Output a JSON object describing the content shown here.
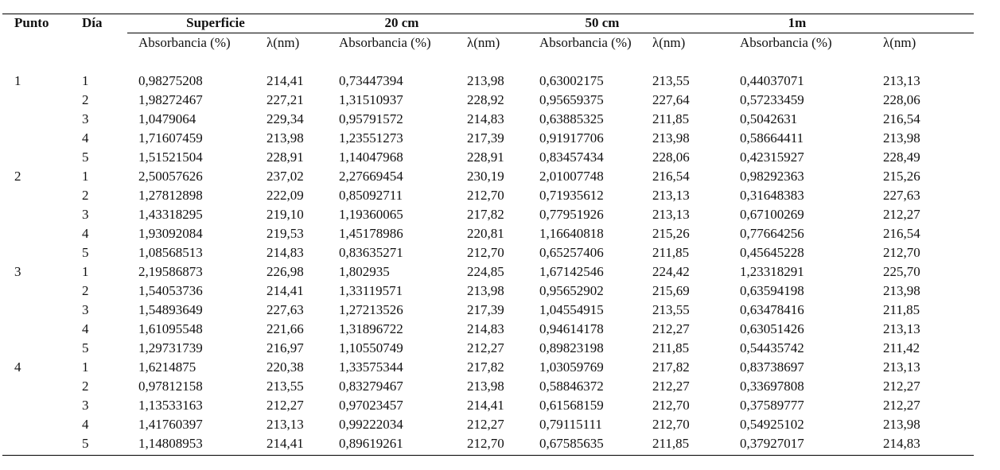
{
  "header": {
    "punto": "Punto",
    "dia": "Día",
    "groups": [
      "Superficie",
      "20 cm",
      "50 cm",
      "1m"
    ],
    "subheaders": [
      "Absorbancia (%)",
      "λ(nm)",
      "Absorbancia (%)",
      "λ(nm)",
      "Absorbancia (%)",
      "λ(nm)",
      "Absorbancia (%)",
      "λ(nm)"
    ]
  },
  "table": {
    "groups": [
      {
        "punto": "1",
        "rows": [
          [
            "1",
            "0,98275208",
            "214,41",
            "0,73447394",
            "213,98",
            "0,63002175",
            "213,55",
            "0,44037071",
            "213,13"
          ],
          [
            "2",
            "1,98272467",
            "227,21",
            "1,31510937",
            "228,92",
            "0,95659375",
            "227,64",
            "0,57233459",
            "228,06"
          ],
          [
            "3",
            "1,0479064",
            "229,34",
            "0,95791572",
            "214,83",
            "0,63885325",
            "211,85",
            "0,5042631",
            "216,54"
          ],
          [
            "4",
            "1,71607459",
            "213,98",
            "1,23551273",
            "217,39",
            "0,91917706",
            "213,98",
            "0,58664411",
            "213,98"
          ],
          [
            "5",
            "1,51521504",
            "228,91",
            "1,14047968",
            "228,91",
            "0,83457434",
            "228,06",
            "0,42315927",
            "228,49"
          ]
        ]
      },
      {
        "punto": "2",
        "rows": [
          [
            "1",
            "2,50057626",
            "237,02",
            "2,27669454",
            "230,19",
            "2,01007748",
            "216,54",
            "0,98292363",
            "215,26"
          ],
          [
            "2",
            "1,27812898",
            "222,09",
            "0,85092711",
            "212,70",
            "0,71935612",
            "213,13",
            "0,31648383",
            "227,63"
          ],
          [
            "3",
            "1,43318295",
            "219,10",
            "1,19360065",
            "217,82",
            "0,77951926",
            "213,13",
            "0,67100269",
            "212,27"
          ],
          [
            "4",
            "1,93092084",
            "219,53",
            "1,45178986",
            "220,81",
            "1,16640818",
            "215,26",
            "0,77664256",
            "216,54"
          ],
          [
            "5",
            "1,08568513",
            "214,83",
            "0,83635271",
            "212,70",
            "0,65257406",
            "211,85",
            "0,45645228",
            "212,70"
          ]
        ]
      },
      {
        "punto": "3",
        "rows": [
          [
            "1",
            "2,19586873",
            "226,98",
            "1,802935",
            "224,85",
            "1,67142546",
            "224,42",
            "1,23318291",
            "225,70"
          ],
          [
            "2",
            "1,54053736",
            "214,41",
            "1,33119571",
            "213,98",
            "0,95652902",
            "215,69",
            "0,63594198",
            "213,98"
          ],
          [
            "3",
            "1,54893649",
            "227,63",
            "1,27213526",
            "217,39",
            "1,04554915",
            "213,55",
            "0,63478416",
            "211,85"
          ],
          [
            "4",
            "1,61095548",
            "221,66",
            "1,31896722",
            "214,83",
            "0,94614178",
            "212,27",
            "0,63051426",
            "213,13"
          ],
          [
            "5",
            "1,29731739",
            "216,97",
            "1,10550749",
            "212,27",
            "0,89823198",
            "211,85",
            "0,54435742",
            "211,42"
          ]
        ]
      },
      {
        "punto": "4",
        "rows": [
          [
            "1",
            "1,6214875",
            "220,38",
            "1,33575344",
            "217,82",
            "1,03059769",
            "217,82",
            "0,83738697",
            "213,13"
          ],
          [
            "2",
            "0,97812158",
            "213,55",
            "0,83279467",
            "213,98",
            "0,58846372",
            "212,27",
            "0,33697808",
            "212,27"
          ],
          [
            "3",
            "1,13533163",
            "212,27",
            "0,97023457",
            "214,41",
            "0,61568159",
            "212,70",
            "0,37589777",
            "212,27"
          ],
          [
            "4",
            "1,41760397",
            "213,13",
            "0,99222034",
            "212,27",
            "0,79115111",
            "212,70",
            "0,54925102",
            "213,98"
          ],
          [
            "5",
            "1,14808953",
            "214,41",
            "0,89619261",
            "212,70",
            "0,67585635",
            "211,85",
            "0,37927017",
            "214,83"
          ]
        ]
      }
    ]
  }
}
